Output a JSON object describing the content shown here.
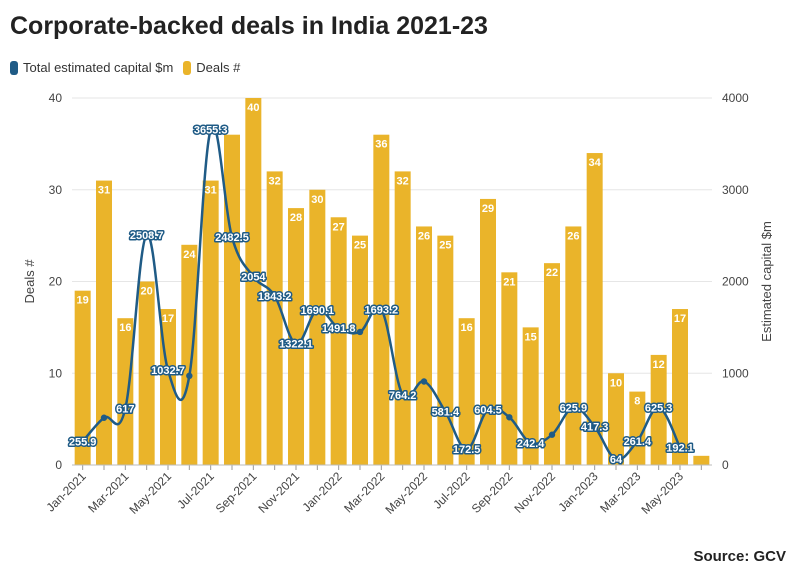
{
  "title": "Corporate-backed deals in India 2021-23",
  "source": "Source: GCV",
  "colors": {
    "bars": "#eab42a",
    "line": "#1f5b86",
    "grid": "#e6e6e6"
  },
  "legend": [
    {
      "label": "Total estimated capital $m",
      "color": "#1f5b86"
    },
    {
      "label": "Deals #",
      "color": "#eab42a"
    }
  ],
  "chart_data": {
    "type": "bar+line",
    "title": "Corporate-backed deals in India 2021-23",
    "ylabel_left": "Deals #",
    "ylabel_right": "Estimated capital $m",
    "ylim_left": [
      0,
      40
    ],
    "ylim_right": [
      0,
      4000
    ],
    "yticks_left": [
      0,
      10,
      20,
      30,
      40
    ],
    "yticks_right": [
      0,
      1000,
      2000,
      3000,
      4000
    ],
    "grid": true,
    "legend_position": "top-left",
    "categories": [
      "Jan-2021",
      "Feb-2021",
      "Mar-2021",
      "Apr-2021",
      "May-2021",
      "Jun-2021",
      "Jul-2021",
      "Aug-2021",
      "Sep-2021",
      "Oct-2021",
      "Nov-2021",
      "Dec-2021",
      "Jan-2022",
      "Feb-2022",
      "Mar-2022",
      "Apr-2022",
      "May-2022",
      "Jun-2022",
      "Jul-2022",
      "Aug-2022",
      "Sep-2022",
      "Oct-2022",
      "Nov-2022",
      "Dec-2022",
      "Jan-2023",
      "Feb-2023",
      "Mar-2023",
      "Apr-2023",
      "May-2023",
      "Jun-2023"
    ],
    "x_tick_labels": [
      "Jan-2021",
      "Mar-2021",
      "May-2021",
      "Jul-2021",
      "Sep-2021",
      "Nov-2021",
      "Jan-2022",
      "Mar-2022",
      "May-2022",
      "Jul-2022",
      "Sep-2022",
      "Nov-2022",
      "Jan-2023",
      "Mar-2023",
      "May-2023"
    ],
    "series": [
      {
        "name": "Deals #",
        "type": "bar",
        "axis": "left",
        "values": [
          19,
          31,
          16,
          20,
          17,
          24,
          31,
          36,
          40,
          32,
          28,
          30,
          27,
          25,
          36,
          32,
          26,
          25,
          16,
          29,
          21,
          15,
          22,
          26,
          34,
          10,
          8,
          12,
          17,
          1
        ],
        "labels": [
          "19",
          "31",
          "16",
          "20",
          "17",
          "24",
          "31",
          "",
          "40",
          "32",
          "28",
          "30",
          "27",
          "25",
          "36",
          "32",
          "26",
          "25",
          "16",
          "29",
          "21",
          "15",
          "22",
          "26",
          "34",
          "10",
          "8",
          "12",
          "17",
          ""
        ]
      },
      {
        "name": "Total estimated capital $m",
        "type": "line",
        "axis": "right",
        "values": [
          255.9,
          515,
          617,
          2508.7,
          1032.7,
          972,
          3655.3,
          2482.5,
          2054,
          1843.2,
          1322.1,
          1690.1,
          1491.8,
          1450,
          1693.2,
          764.2,
          910,
          581.4,
          172.5,
          604.5,
          520,
          242.4,
          330,
          625.9,
          417.3,
          64,
          261.4,
          625.3,
          192.1,
          null
        ],
        "labels": [
          "255.9",
          "",
          "617",
          "2508.7",
          "1032.7",
          "",
          "3655.3",
          "2482.5",
          "2054",
          "1843.2",
          "1322.1",
          "1690.1",
          "1491.8",
          "",
          "1693.2",
          "764.2",
          "",
          "581.4",
          "172.5",
          "604.5",
          "",
          "242.4",
          "",
          "625.9",
          "417.3",
          "64",
          "261.4",
          "625.3",
          "192.1",
          ""
        ]
      }
    ]
  }
}
